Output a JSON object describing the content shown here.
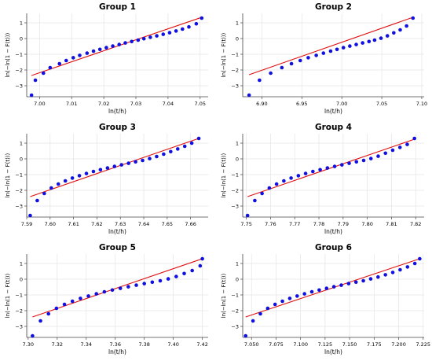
{
  "chart_data": [
    {
      "type": "scatter",
      "title": "Group 1",
      "xlabel": "ln(t/h)",
      "ylabel": "ln(−ln(1 − F(t)))",
      "xlim": [
        6.996,
        7.0525
      ],
      "ylim": [
        -3.7,
        1.6
      ],
      "xticks": [
        "7.00",
        "7.01",
        "7.02",
        "7.03",
        "7.04",
        "7.05"
      ],
      "yticks": [
        "1",
        "0",
        "−1",
        "−2",
        "−3"
      ],
      "grid": true,
      "series": [
        {
          "x": [
            6.9975,
            6.9987,
            7.0012,
            7.0033,
            7.0062,
            7.0083,
            7.0105,
            7.0125,
            7.0148,
            7.0168,
            7.0188,
            7.0208,
            7.0228,
            7.0248,
            7.0267,
            7.0287,
            7.0307,
            7.0325,
            7.0345,
            7.0365,
            7.0385,
            7.0405,
            7.0425,
            7.0445,
            7.0465,
            7.0488,
            7.0505
          ],
          "y": [
            -3.6,
            -2.65,
            -2.2,
            -1.85,
            -1.6,
            -1.4,
            -1.22,
            -1.07,
            -0.93,
            -0.8,
            -0.69,
            -0.58,
            -0.48,
            -0.38,
            -0.28,
            -0.19,
            -0.1,
            -0.01,
            0.08,
            0.17,
            0.27,
            0.37,
            0.48,
            0.6,
            0.74,
            0.94,
            1.3
          ]
        },
        {
          "x": [
            6.9975,
            7.0505
          ],
          "y": [
            -2.35,
            1.35
          ]
        }
      ]
    },
    {
      "type": "scatter",
      "title": "Group 2",
      "xlabel": "ln(t/h)",
      "ylabel": "ln(−ln(1 − F(t)))",
      "xlim": [
        6.876,
        7.103
      ],
      "ylim": [
        -3.7,
        1.6
      ],
      "xticks": [
        "6.90",
        "6.95",
        "7.00",
        "7.05",
        "7.10"
      ],
      "yticks": [
        "1",
        "0",
        "−1",
        "−2",
        "−3"
      ],
      "grid": true,
      "series": [
        {
          "x": [
            6.884,
            6.897,
            6.911,
            6.925,
            6.937,
            6.948,
            6.958,
            6.968,
            6.977,
            6.986,
            6.994,
            7.002,
            7.01,
            7.018,
            7.026,
            7.034,
            7.041,
            7.049,
            7.057,
            7.065,
            7.073,
            7.081,
            7.089
          ],
          "y": [
            -3.6,
            -2.65,
            -2.2,
            -1.85,
            -1.6,
            -1.4,
            -1.22,
            -1.07,
            -0.93,
            -0.8,
            -0.69,
            -0.58,
            -0.48,
            -0.38,
            -0.28,
            -0.19,
            -0.1,
            0.02,
            0.17,
            0.36,
            0.55,
            0.8,
            1.3
          ]
        },
        {
          "x": [
            6.884,
            7.089
          ],
          "y": [
            -2.3,
            1.35
          ]
        }
      ]
    },
    {
      "type": "scatter",
      "title": "Group 3",
      "xlabel": "ln(t/h)",
      "ylabel": "ln(−ln(1 − F(t)))",
      "xlim": [
        7.59,
        7.6675
      ],
      "ylim": [
        -3.7,
        1.6
      ],
      "xticks": [
        "7.59",
        "7.60",
        "7.61",
        "7.62",
        "7.63",
        "7.64",
        "7.65",
        "7.66"
      ],
      "yticks": [
        "1",
        "0",
        "−1",
        "−2",
        "−3"
      ],
      "grid": true,
      "series": [
        {
          "x": [
            7.5915,
            7.5945,
            7.5975,
            7.6005,
            7.6035,
            7.6065,
            7.6095,
            7.6125,
            7.6155,
            7.6185,
            7.6215,
            7.6245,
            7.6275,
            7.6305,
            7.6335,
            7.6365,
            7.6395,
            7.6425,
            7.6455,
            7.6485,
            7.6515,
            7.6545,
            7.6575,
            7.6605,
            7.6635
          ],
          "y": [
            -3.6,
            -2.65,
            -2.2,
            -1.85,
            -1.6,
            -1.4,
            -1.22,
            -1.07,
            -0.93,
            -0.8,
            -0.69,
            -0.58,
            -0.48,
            -0.38,
            -0.28,
            -0.19,
            -0.1,
            0.02,
            0.15,
            0.3,
            0.46,
            0.63,
            0.8,
            1.0,
            1.3
          ]
        },
        {
          "x": [
            7.5915,
            7.6635
          ],
          "y": [
            -2.4,
            1.3
          ]
        }
      ]
    },
    {
      "type": "scatter",
      "title": "Group 4",
      "xlabel": "ln(t/h)",
      "ylabel": "ln(−ln(1 − F(t)))",
      "xlim": [
        7.7485,
        7.8235
      ],
      "ylim": [
        -3.7,
        1.6
      ],
      "xticks": [
        "7.75",
        "7.76",
        "7.77",
        "7.78",
        "7.79",
        "7.80",
        "7.81",
        "7.82"
      ],
      "yticks": [
        "1",
        "0",
        "−1",
        "−2",
        "−3"
      ],
      "grid": true,
      "series": [
        {
          "x": [
            7.7505,
            7.7535,
            7.7565,
            7.7595,
            7.7625,
            7.7655,
            7.7685,
            7.7715,
            7.7745,
            7.7775,
            7.7805,
            7.7835,
            7.7865,
            7.7895,
            7.7925,
            7.7955,
            7.7985,
            7.8015,
            7.8045,
            7.8075,
            7.8105,
            7.8135,
            7.8165,
            7.8195
          ],
          "y": [
            -3.6,
            -2.65,
            -2.2,
            -1.85,
            -1.6,
            -1.4,
            -1.22,
            -1.07,
            -0.93,
            -0.8,
            -0.69,
            -0.58,
            -0.48,
            -0.38,
            -0.28,
            -0.19,
            -0.1,
            0.02,
            0.17,
            0.36,
            0.55,
            0.73,
            0.92,
            1.3
          ]
        },
        {
          "x": [
            7.7505,
            7.8195
          ],
          "y": [
            -2.4,
            1.25
          ]
        }
      ]
    },
    {
      "type": "scatter",
      "title": "Group 5",
      "xlabel": "ln(t/h)",
      "ylabel": "ln(−ln(1 − F(t)))",
      "xlim": [
        7.299,
        7.424
      ],
      "ylim": [
        -3.7,
        1.6
      ],
      "xticks": [
        "7.30",
        "7.32",
        "7.34",
        "7.36",
        "7.38",
        "7.40",
        "7.42"
      ],
      "yticks": [
        "1",
        "0",
        "−1",
        "−2",
        "−3"
      ],
      "grid": true,
      "series": [
        {
          "x": [
            7.303,
            7.3085,
            7.314,
            7.3195,
            7.325,
            7.3305,
            7.336,
            7.3415,
            7.347,
            7.3525,
            7.358,
            7.3635,
            7.369,
            7.3745,
            7.38,
            7.3855,
            7.391,
            7.3965,
            7.402,
            7.4075,
            7.413,
            7.4185,
            7.42
          ],
          "y": [
            -3.6,
            -2.65,
            -2.2,
            -1.85,
            -1.6,
            -1.4,
            -1.22,
            -1.07,
            -0.93,
            -0.8,
            -0.69,
            -0.58,
            -0.48,
            -0.38,
            -0.28,
            -0.19,
            -0.1,
            0.02,
            0.17,
            0.36,
            0.55,
            0.85,
            1.3
          ]
        },
        {
          "x": [
            7.303,
            7.42
          ],
          "y": [
            -2.4,
            1.3
          ]
        }
      ]
    },
    {
      "type": "scatter",
      "title": "Group 6",
      "xlabel": "ln(t/h)",
      "ylabel": "ln(−ln(1 − F(t)))",
      "xlim": [
        7.041,
        7.226
      ],
      "ylim": [
        -3.7,
        1.6
      ],
      "xticks": [
        "7.050",
        "7.075",
        "7.100",
        "7.125",
        "7.150",
        "7.175",
        "7.200",
        "7.225"
      ],
      "yticks": [
        "1",
        "0",
        "−1",
        "−2",
        "−3"
      ],
      "grid": true,
      "series": [
        {
          "x": [
            7.044,
            7.0515,
            7.059,
            7.0665,
            7.074,
            7.0815,
            7.089,
            7.0965,
            7.104,
            7.1115,
            7.119,
            7.1265,
            7.134,
            7.1415,
            7.149,
            7.1565,
            7.164,
            7.1715,
            7.179,
            7.1865,
            7.194,
            7.2015,
            7.209,
            7.2165,
            7.2215
          ],
          "y": [
            -3.6,
            -2.65,
            -2.2,
            -1.85,
            -1.6,
            -1.4,
            -1.22,
            -1.07,
            -0.93,
            -0.8,
            -0.69,
            -0.58,
            -0.48,
            -0.38,
            -0.28,
            -0.19,
            -0.1,
            0.02,
            0.14,
            0.28,
            0.43,
            0.6,
            0.78,
            1.0,
            1.3
          ]
        },
        {
          "x": [
            7.044,
            7.2215
          ],
          "y": [
            -2.4,
            1.3
          ]
        }
      ]
    }
  ],
  "colors": {
    "points": "#1010e0",
    "fit_line": "#e01010",
    "grid": "#e4e4e4",
    "axis": "#444444"
  }
}
